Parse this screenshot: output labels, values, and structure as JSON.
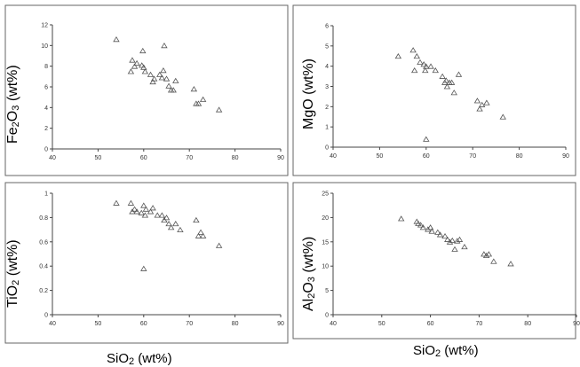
{
  "chart_data": [
    {
      "type": "scatter",
      "ylabel_parts": [
        "Fe",
        "2",
        "O",
        "3",
        " (wt%)"
      ],
      "ylabel": "Fe2O3 (wt%)",
      "xlim": [
        40,
        90
      ],
      "ylim": [
        0,
        12
      ],
      "x_ticks": [
        40,
        50,
        60,
        70,
        80,
        90
      ],
      "y_ticks": [
        0,
        2,
        4,
        6,
        8,
        10,
        12
      ],
      "points": [
        [
          54,
          10.6
        ],
        [
          57.2,
          7.5
        ],
        [
          57.5,
          8.6
        ],
        [
          58,
          8
        ],
        [
          58.5,
          8.3
        ],
        [
          59.6,
          8.1
        ],
        [
          59.8,
          9.5
        ],
        [
          60,
          7.9
        ],
        [
          60.3,
          7.5
        ],
        [
          61.5,
          7.2
        ],
        [
          62,
          6.5
        ],
        [
          62.3,
          6.8
        ],
        [
          63.5,
          7.2
        ],
        [
          64,
          6.9
        ],
        [
          64.3,
          7.6
        ],
        [
          64.5,
          10
        ],
        [
          65,
          6.8
        ],
        [
          65.5,
          6.1
        ],
        [
          66,
          5.7
        ],
        [
          66.5,
          5.7
        ],
        [
          67,
          6.6
        ],
        [
          71,
          5.8
        ],
        [
          71.5,
          4.4
        ],
        [
          72,
          4.4
        ],
        [
          73,
          4.8
        ],
        [
          76.5,
          3.8
        ]
      ]
    },
    {
      "type": "scatter",
      "ylabel_parts": [
        "MgO (wt%)"
      ],
      "ylabel": "MgO (wt%)",
      "xlim": [
        40,
        90
      ],
      "ylim": [
        0,
        6
      ],
      "x_ticks": [
        40,
        50,
        60,
        70,
        80,
        90
      ],
      "y_ticks": [
        0,
        1,
        2,
        3,
        4,
        5,
        6
      ],
      "points": [
        [
          54,
          4.5
        ],
        [
          57.2,
          4.8
        ],
        [
          57.5,
          3.8
        ],
        [
          58,
          4.5
        ],
        [
          58.7,
          4.2
        ],
        [
          59.5,
          4.1
        ],
        [
          59.8,
          3.8
        ],
        [
          60,
          4.0
        ],
        [
          60,
          0.4
        ],
        [
          61,
          4.0
        ],
        [
          62,
          3.8
        ],
        [
          63.5,
          3.5
        ],
        [
          64,
          3.2
        ],
        [
          64.3,
          3.3
        ],
        [
          64.5,
          3.0
        ],
        [
          65,
          3.2
        ],
        [
          65.5,
          3.2
        ],
        [
          66,
          2.7
        ],
        [
          67,
          3.6
        ],
        [
          71,
          2.3
        ],
        [
          71.5,
          1.9
        ],
        [
          72,
          2.1
        ],
        [
          73,
          2.2
        ],
        [
          76.5,
          1.5
        ]
      ]
    },
    {
      "type": "scatter",
      "ylabel_parts": [
        "TiO",
        "2",
        " (wt%)"
      ],
      "ylabel": "TiO2 (wt%)",
      "xlim": [
        40,
        90
      ],
      "ylim": [
        0,
        1
      ],
      "x_ticks": [
        40,
        50,
        60,
        70,
        80,
        90
      ],
      "y_ticks": [
        0,
        0.2,
        0.4,
        0.6,
        0.8,
        1
      ],
      "points": [
        [
          54,
          0.92
        ],
        [
          57.2,
          0.92
        ],
        [
          57.5,
          0.85
        ],
        [
          58,
          0.87
        ],
        [
          58.5,
          0.85
        ],
        [
          59.5,
          0.84
        ],
        [
          60,
          0.9
        ],
        [
          60.3,
          0.82
        ],
        [
          60.5,
          0.87
        ],
        [
          61.5,
          0.85
        ],
        [
          62,
          0.88
        ],
        [
          63,
          0.82
        ],
        [
          64,
          0.82
        ],
        [
          64.5,
          0.78
        ],
        [
          65,
          0.8
        ],
        [
          65.5,
          0.75
        ],
        [
          66,
          0.72
        ],
        [
          67,
          0.75
        ],
        [
          68,
          0.7
        ],
        [
          60,
          0.38
        ],
        [
          71.5,
          0.78
        ],
        [
          72,
          0.65
        ],
        [
          72.5,
          0.68
        ],
        [
          73,
          0.65
        ],
        [
          76.5,
          0.57
        ]
      ]
    },
    {
      "type": "scatter",
      "ylabel_parts": [
        "Al",
        "2",
        "O",
        "3",
        " (wt%)"
      ],
      "ylabel": "Al2O3 (wt%)",
      "xlabel_parts": [
        "SiO",
        "2",
        " (wt%)"
      ],
      "xlabel": "SiO2 (wt%)",
      "xlim": [
        40,
        90
      ],
      "ylim": [
        0,
        25
      ],
      "x_ticks": [
        40,
        50,
        60,
        70,
        80,
        90
      ],
      "y_ticks": [
        0,
        5,
        10,
        15,
        20,
        25
      ],
      "points": [
        [
          54,
          19.8
        ],
        [
          57.2,
          19.2
        ],
        [
          57.5,
          18.8
        ],
        [
          58,
          18.5
        ],
        [
          58.5,
          18
        ],
        [
          59.5,
          17.6
        ],
        [
          60,
          18
        ],
        [
          60.3,
          17.2
        ],
        [
          61.5,
          17
        ],
        [
          62,
          16.5
        ],
        [
          63,
          16.2
        ],
        [
          63.5,
          15.5
        ],
        [
          64,
          15
        ],
        [
          64.5,
          15.3
        ],
        [
          65,
          13.5
        ],
        [
          65.5,
          15.2
        ],
        [
          66,
          15.5
        ],
        [
          67,
          14
        ],
        [
          71,
          12.5
        ],
        [
          71.5,
          12.2
        ],
        [
          72,
          12.5
        ],
        [
          73,
          11
        ],
        [
          76.5,
          10.5
        ]
      ]
    }
  ],
  "bottom_left_xlabel_parts": [
    "SiO",
    "2",
    " (wt%)"
  ],
  "bottom_left_xlabel": "SiO2 (wt%)"
}
